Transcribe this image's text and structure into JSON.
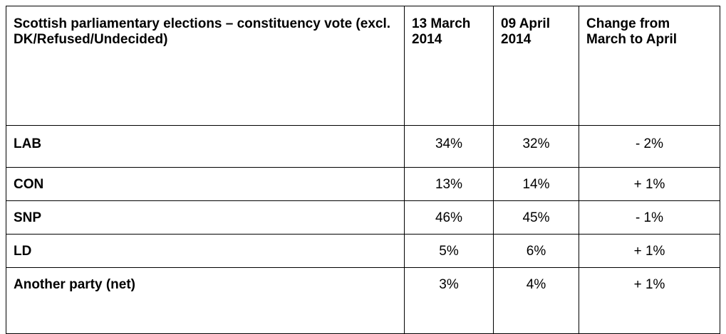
{
  "table": {
    "header": [
      "Scottish parliamentary elections – constituency vote (excl. DK/Refused/Undecided)",
      "13 March 2014",
      "09 April 2014",
      "Change from March to April"
    ],
    "rows": [
      [
        "LAB",
        "34%",
        "32%",
        "- 2%"
      ],
      [
        "CON",
        "13%",
        "14%",
        "+ 1%"
      ],
      [
        "SNP",
        "46%",
        "45%",
        "- 1%"
      ],
      [
        "LD",
        "5%",
        "6%",
        "+ 1%"
      ],
      [
        "Another party (net)",
        "3%",
        "4%",
        "+ 1%"
      ]
    ]
  }
}
